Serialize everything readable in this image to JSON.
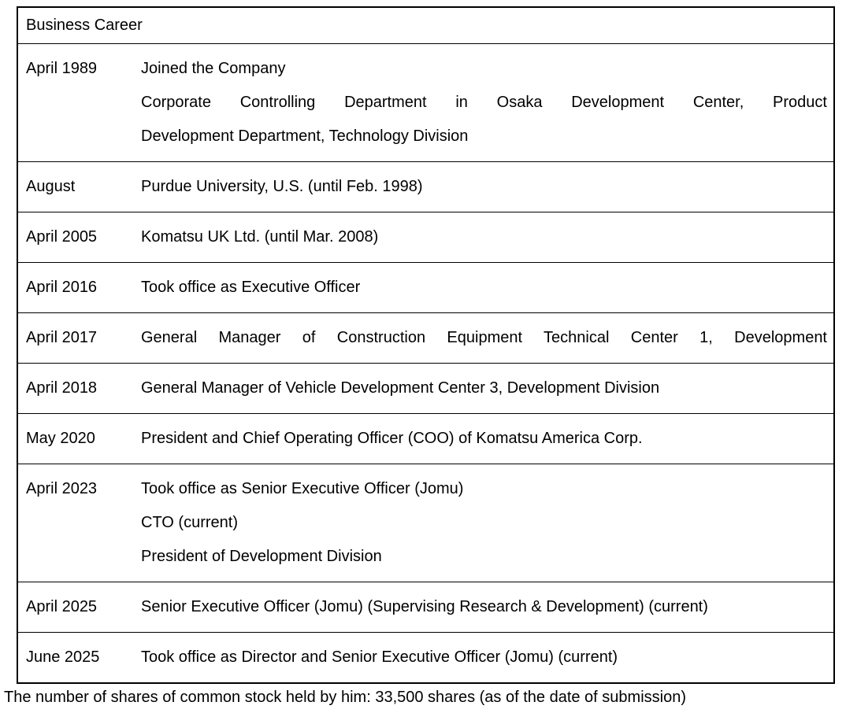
{
  "colors": {
    "text": "#000000",
    "border": "#000000",
    "background": "#ffffff"
  },
  "table": {
    "header": "Business Career",
    "rows": [
      {
        "date": "April 1989",
        "lines": [
          {
            "text": "Joined the Company",
            "justify": false
          },
          {
            "text": "Corporate Controlling Department in Osaka Development Center, Product",
            "justify": true
          },
          {
            "text": "Development Department, Technology Division",
            "justify": false
          }
        ]
      },
      {
        "date": "August",
        "lines": [
          {
            "text": "Purdue University, U.S. (until Feb. 1998)",
            "justify": false
          }
        ]
      },
      {
        "date": "April 2005",
        "lines": [
          {
            "text": "Komatsu UK Ltd. (until Mar. 2008)",
            "justify": false
          }
        ]
      },
      {
        "date": "April 2016",
        "lines": [
          {
            "text": "Took office as Executive Officer",
            "justify": false
          }
        ]
      },
      {
        "date": "April 2017",
        "lines": [
          {
            "text": "General Manager of Construction Equipment Technical Center 1, Development",
            "justify": true
          }
        ]
      },
      {
        "date": "April 2018",
        "lines": [
          {
            "text": "General Manager of Vehicle Development Center 3, Development Division",
            "justify": false
          }
        ]
      },
      {
        "date": "May 2020",
        "lines": [
          {
            "text": "President and Chief Operating Officer (COO) of Komatsu America Corp.",
            "justify": false
          }
        ]
      },
      {
        "date": "April 2023",
        "lines": [
          {
            "text": "Took office as Senior Executive Officer (Jomu)",
            "justify": false
          },
          {
            "text": "CTO (current)",
            "justify": false
          },
          {
            "text": "President of Development Division",
            "justify": false
          }
        ]
      },
      {
        "date": "April 2025",
        "lines": [
          {
            "text": "Senior Executive Officer (Jomu) (Supervising Research & Development) (current)",
            "justify": false
          }
        ]
      },
      {
        "date": "June 2025",
        "lines": [
          {
            "text": "Took office as Director and Senior Executive Officer (Jomu) (current)",
            "justify": false
          }
        ]
      }
    ]
  },
  "footer": "The number of shares of common stock held by him: 33,500 shares (as of the date of submission)"
}
